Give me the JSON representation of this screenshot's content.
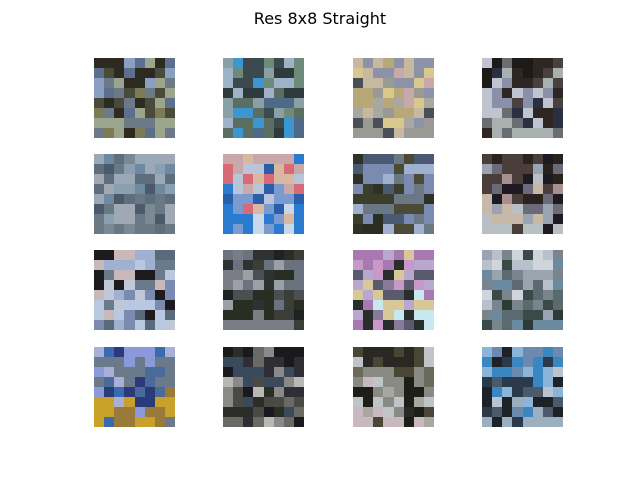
{
  "figure": {
    "title": "Res 8x8 Straight"
  },
  "images": [
    {
      "name": "thumb-1",
      "palette": [
        "#2e2a22",
        "#5c6f8c",
        "#8aa0c2",
        "#6b7a86",
        "#4a4a3a",
        "#2a2d24",
        "#7d7a56",
        "#9aa58c"
      ]
    },
    {
      "name": "thumb-2",
      "palette": [
        "#3a4a4e",
        "#6e8a7a",
        "#9fb3c8",
        "#4e6a86",
        "#2f3a3a",
        "#8aa0a4",
        "#3c96d2",
        "#5a6e62"
      ]
    },
    {
      "name": "thumb-3",
      "palette": [
        "#8c92a8",
        "#c8b8a0",
        "#d8c88c",
        "#c8a8a8",
        "#b8a878",
        "#a8a8a0",
        "#4a4e56",
        "#9a9a94"
      ]
    },
    {
      "name": "thumb-4",
      "palette": [
        "#1e1a18",
        "#2e2622",
        "#4a4040",
        "#8a90a8",
        "#c0c4d0",
        "#2a3040",
        "#6a6e72",
        "#a8b0b0"
      ]
    },
    {
      "name": "thumb-5",
      "palette": [
        "#6e8aa0",
        "#9aa8b8",
        "#8aa0b0",
        "#5e6e7c",
        "#4a5a6a",
        "#a0a8b4",
        "#7a8a94",
        "#6a7884"
      ]
    },
    {
      "name": "thumb-6",
      "palette": [
        "#c8a8a8",
        "#d8b8a0",
        "#d86a78",
        "#b8c4d8",
        "#7a9ad0",
        "#2a5ea8",
        "#2a7ad0",
        "#c8d8e8"
      ]
    },
    {
      "name": "thumb-7",
      "palette": [
        "#4a5a72",
        "#7a8ab0",
        "#a0b0d0",
        "#2e3226",
        "#3a3e2a",
        "#6a7884",
        "#4a4a36",
        "#2a2e22"
      ]
    },
    {
      "name": "thumb-8",
      "palette": [
        "#2a221e",
        "#4a3e3a",
        "#a89090",
        "#1e1a22",
        "#6a6a78",
        "#c8b8a8",
        "#9aa4b0",
        "#b8c0c4"
      ]
    },
    {
      "name": "thumb-9",
      "palette": [
        "#a0b0d0",
        "#c8b8b8",
        "#6a7a8a",
        "#1e1a1e",
        "#c0c8d8",
        "#7a8ab0",
        "#b8c8e0",
        "#5a6a7a"
      ]
    },
    {
      "name": "thumb-10",
      "palette": [
        "#1e2220",
        "#2e3232",
        "#6a7280",
        "#4a5052",
        "#9aa0a8",
        "#2a2e22",
        "#3a3e36",
        "#7a7e84"
      ]
    },
    {
      "name": "thumb-11",
      "palette": [
        "#a878b0",
        "#c898c8",
        "#b8a8d0",
        "#5a5a6e",
        "#d8c898",
        "#c8e8f0",
        "#2a2e2a",
        "#8a7a9a"
      ]
    },
    {
      "name": "thumb-12",
      "palette": [
        "#d0d4dc",
        "#b8c0cc",
        "#9aa4b0",
        "#7a848c",
        "#5a6a6e",
        "#3a4a46",
        "#2e3a36",
        "#6a8aa0"
      ]
    },
    {
      "name": "thumb-13",
      "palette": [
        "#8a9ad8",
        "#a8b0d8",
        "#6a7a8a",
        "#4a6a9a",
        "#2a3a7a",
        "#3a6ab0",
        "#c8a02a",
        "#9a7a3a"
      ]
    },
    {
      "name": "thumb-14",
      "palette": [
        "#1a1a1e",
        "#2e2e34",
        "#3a4a5a",
        "#8a8a8a",
        "#b8b8b4",
        "#4a4a44",
        "#2a2e26",
        "#6a6a64"
      ]
    },
    {
      "name": "thumb-15",
      "palette": [
        "#2a2822",
        "#4a4636",
        "#6a6a5a",
        "#8a8a84",
        "#c0c4c8",
        "#1e1e18",
        "#a8a8a0",
        "#c8b8c0"
      ]
    },
    {
      "name": "thumb-16",
      "palette": [
        "#6a8ab0",
        "#8ab4d8",
        "#3a86c0",
        "#2a3a4a",
        "#b8c4d0",
        "#4a5a6a",
        "#1e2226",
        "#9ab0c0"
      ]
    }
  ]
}
